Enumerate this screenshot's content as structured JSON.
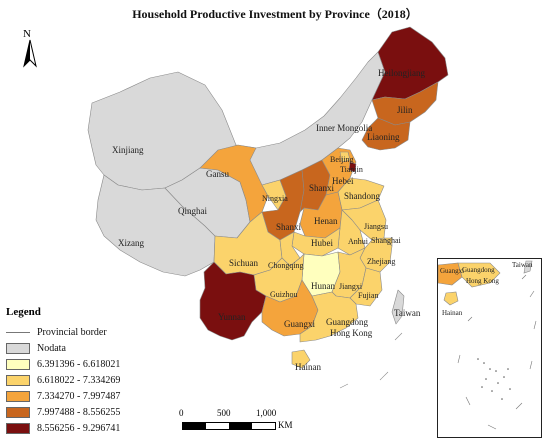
{
  "title": "Household Productive Investment by Province（2018）",
  "north_label": "N",
  "legend": {
    "title": "Legend",
    "border_label": "Provincial border",
    "nodata_label": "Nodata",
    "nodata_color": "#d9d9d9",
    "classes": [
      {
        "label": "6.391396 - 6.618021",
        "color": "#ffffbe"
      },
      {
        "label": "6.618022 - 7.334269",
        "color": "#fbd36b"
      },
      {
        "label": "7.334270 - 7.997487",
        "color": "#f4a43c"
      },
      {
        "label": "7.997488 - 8.556255",
        "color": "#c8661e"
      },
      {
        "label": "8.556256 - 9.296741",
        "color": "#7a0f0f"
      }
    ]
  },
  "scale": {
    "ticks": [
      "0",
      "500",
      "1,000"
    ],
    "unit": "KM"
  },
  "provinces": {
    "heilongjiang": "Heilongjiang",
    "jilin": "Jilin",
    "liaoning": "Liaoning",
    "inner_mongolia": "Inner Mongolia",
    "beijing": "Beijing",
    "tianjin": "Tianjin",
    "hebei": "Hebei",
    "shanxi": "Shanxi",
    "shandong": "Shandong",
    "xinjiang": "Xinjiang",
    "gansu": "Gansu",
    "ningxia": "Ningxia",
    "qinghai": "Qinghai",
    "shaanxi": "Shanxi",
    "henan": "Henan",
    "jiangsu": "Jiangsu",
    "anhui": "Anhui",
    "shanghai": "Shanghai",
    "hubei": "Hubei",
    "xizang": "Xizang",
    "sichuan": "Sichuan",
    "chongqing": "Chongqing",
    "zhejiang": "Zhejiang",
    "hunan": "Hunan",
    "jiangxi": "Jiangxi",
    "guizhou": "Guizhou",
    "fujian": "Fujian",
    "yunnan": "Yunnan",
    "guangxi": "Guangxi",
    "guangdong": "Guangdong",
    "hongkong": "Hong Kong",
    "taiwan": "Taiwan",
    "hainan": "Hainan"
  },
  "inset": {
    "guangxi": "Guangxi",
    "guangdong": "Guangdong",
    "hongkong": "Hong Kong",
    "taiwan": "Taiwan",
    "hainan": "Hainan"
  }
}
